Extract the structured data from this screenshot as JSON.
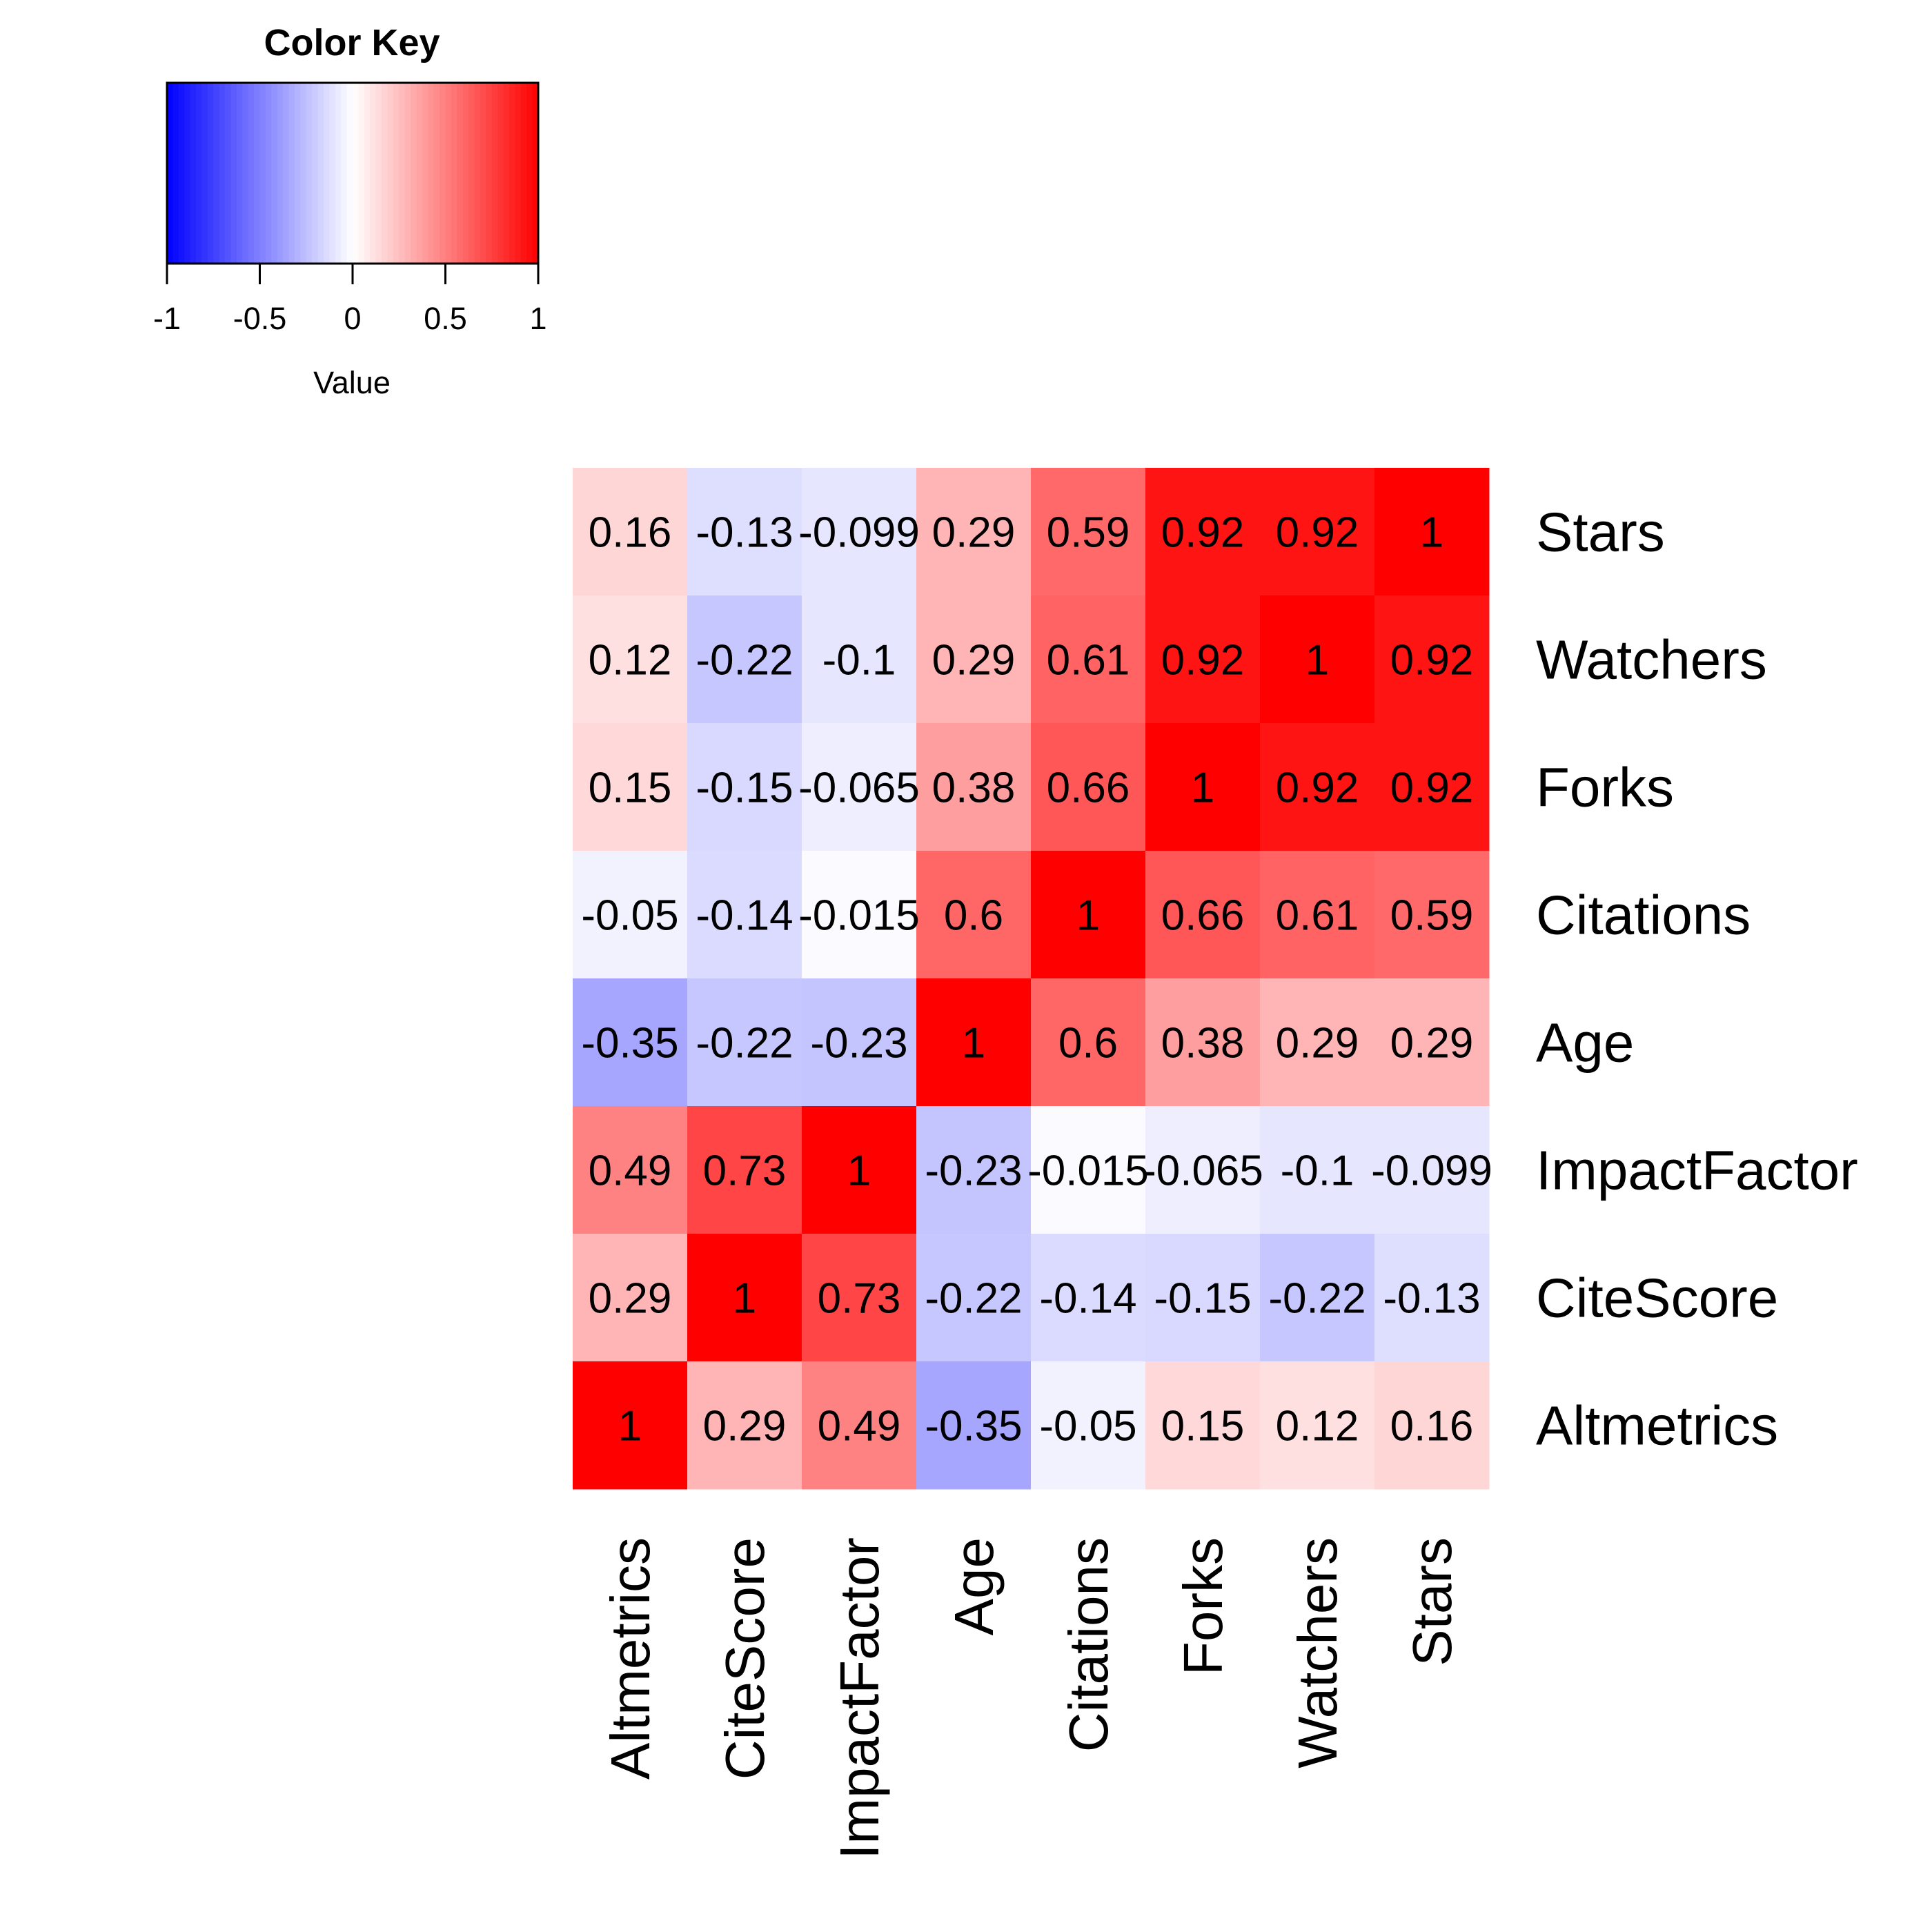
{
  "chart_data": {
    "type": "heatmap",
    "colorscale": {
      "low": "#0000FF",
      "mid": "#FFFFFF",
      "high": "#FF0000"
    },
    "color_key": {
      "title": "Color Key",
      "xlabel": "Value",
      "range": [
        -1,
        1
      ],
      "ticks": [
        -1,
        -0.5,
        0,
        0.5,
        1
      ],
      "tick_labels": [
        "-1",
        "-0.5",
        "0",
        "0.5",
        "1"
      ]
    },
    "columns": [
      "Altmetrics",
      "CiteScore",
      "ImpactFactor",
      "Age",
      "Citations",
      "Forks",
      "Watchers",
      "Stars"
    ],
    "rows": [
      "Stars",
      "Watchers",
      "Forks",
      "Citations",
      "Age",
      "ImpactFactor",
      "CiteScore",
      "Altmetrics"
    ],
    "values": [
      [
        0.16,
        -0.13,
        -0.099,
        0.29,
        0.59,
        0.92,
        0.92,
        1
      ],
      [
        0.12,
        -0.22,
        -0.1,
        0.29,
        0.61,
        0.92,
        1,
        0.92
      ],
      [
        0.15,
        -0.15,
        -0.065,
        0.38,
        0.66,
        1,
        0.92,
        0.92
      ],
      [
        -0.05,
        -0.14,
        -0.015,
        0.6,
        1,
        0.66,
        0.61,
        0.59
      ],
      [
        -0.35,
        -0.22,
        -0.23,
        1,
        0.6,
        0.38,
        0.29,
        0.29
      ],
      [
        0.49,
        0.73,
        1,
        -0.23,
        -0.015,
        -0.065,
        -0.1,
        -0.099
      ],
      [
        0.29,
        1,
        0.73,
        -0.22,
        -0.14,
        -0.15,
        -0.22,
        -0.13
      ],
      [
        1,
        0.29,
        0.49,
        -0.35,
        -0.05,
        0.15,
        0.12,
        0.16
      ]
    ],
    "cell_labels": [
      [
        "0.16",
        "-0.13",
        "-0.099",
        "0.29",
        "0.59",
        "0.92",
        "0.92",
        "1"
      ],
      [
        "0.12",
        "-0.22",
        "-0.1",
        "0.29",
        "0.61",
        "0.92",
        "1",
        "0.92"
      ],
      [
        "0.15",
        "-0.15",
        "-0.065",
        "0.38",
        "0.66",
        "1",
        "0.92",
        "0.92"
      ],
      [
        "-0.05",
        "-0.14",
        "-0.015",
        "0.6",
        "1",
        "0.66",
        "0.61",
        "0.59"
      ],
      [
        "-0.35",
        "-0.22",
        "-0.23",
        "1",
        "0.6",
        "0.38",
        "0.29",
        "0.29"
      ],
      [
        "0.49",
        "0.73",
        "1",
        "-0.23",
        "-0.015",
        "-0.065",
        "-0.1",
        "-0.099"
      ],
      [
        "0.29",
        "1",
        "0.73",
        "-0.22",
        "-0.14",
        "-0.15",
        "-0.22",
        "-0.13"
      ],
      [
        "1",
        "0.29",
        "0.49",
        "-0.35",
        "-0.05",
        "0.15",
        "0.12",
        "0.16"
      ]
    ]
  }
}
